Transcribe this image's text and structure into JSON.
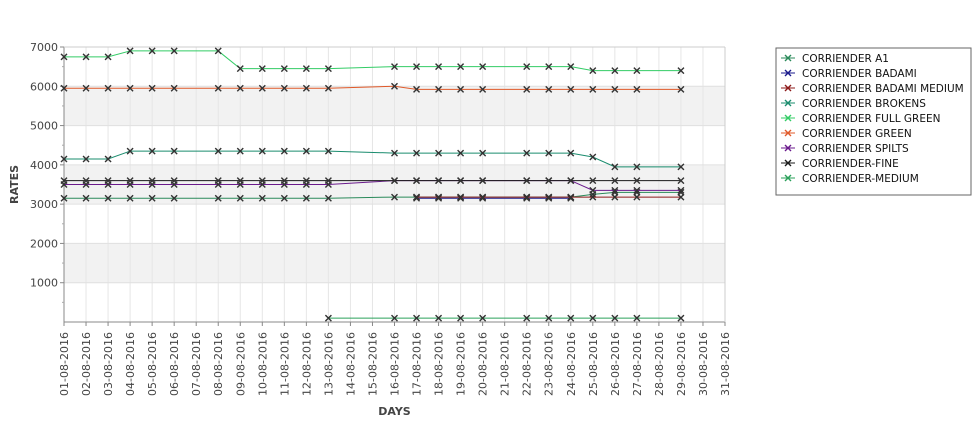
{
  "chart_data": {
    "type": "line",
    "title": "",
    "xlabel": "DAYS",
    "ylabel": "RATES",
    "ylim": [
      0,
      7000
    ],
    "yticks": [
      1000,
      2000,
      3000,
      4000,
      5000,
      6000,
      7000
    ],
    "grid": true,
    "legend_position": "right",
    "categories": [
      "01-08-2016",
      "02-08-2016",
      "03-08-2016",
      "04-08-2016",
      "05-08-2016",
      "06-08-2016",
      "07-08-2016",
      "08-08-2016",
      "09-08-2016",
      "10-08-2016",
      "11-08-2016",
      "12-08-2016",
      "13-08-2016",
      "14-08-2016",
      "15-08-2016",
      "16-08-2016",
      "17-08-2016",
      "18-08-2016",
      "19-08-2016",
      "20-08-2016",
      "21-08-2016",
      "22-08-2016",
      "23-08-2016",
      "24-08-2016",
      "25-08-2016",
      "26-08-2016",
      "27-08-2016",
      "28-08-2016",
      "29-08-2016",
      "30-08-2016",
      "31-08-2016"
    ],
    "series": [
      {
        "name": "CORRIENDER A1",
        "color": "#2a8a5a",
        "marker": "x",
        "values": [
          3150,
          3150,
          3150,
          3150,
          3150,
          3150,
          null,
          3150,
          3150,
          3150,
          3150,
          3150,
          3150,
          null,
          null,
          3180,
          3180,
          3180,
          3180,
          3180,
          null,
          3180,
          3180,
          3180,
          3250,
          3300,
          3300,
          null,
          3300,
          null,
          null
        ]
      },
      {
        "name": "CORRIENDER BADAMI",
        "color": "#1a1a8c",
        "marker": "x",
        "values": [
          null,
          null,
          null,
          null,
          null,
          null,
          null,
          null,
          null,
          null,
          null,
          null,
          null,
          null,
          null,
          null,
          3150,
          3150,
          3150,
          3150,
          null,
          3150,
          3150,
          3150,
          null,
          null,
          null,
          null,
          null,
          null,
          null
        ]
      },
      {
        "name": "CORRIENDER BADAMI MEDIUM",
        "color": "#8c1a1a",
        "marker": "x",
        "values": [
          null,
          null,
          null,
          null,
          null,
          null,
          null,
          null,
          null,
          null,
          null,
          null,
          null,
          null,
          null,
          null,
          3180,
          3180,
          3180,
          3180,
          null,
          3180,
          3180,
          3180,
          3180,
          3180,
          3180,
          null,
          3180,
          null,
          null
        ]
      },
      {
        "name": "CORRIENDER BROKENS",
        "color": "#1a8c6e",
        "marker": "x",
        "values": [
          4150,
          4150,
          4150,
          4350,
          4350,
          4350,
          null,
          4350,
          4350,
          4350,
          4350,
          4350,
          4350,
          null,
          null,
          4300,
          4300,
          4300,
          4300,
          4300,
          null,
          4300,
          4300,
          4300,
          4200,
          3950,
          3950,
          null,
          3950,
          null,
          null
        ]
      },
      {
        "name": "CORRIENDER FULL GREEN",
        "color": "#33cc66",
        "marker": "x",
        "values": [
          6750,
          6750,
          6750,
          6900,
          6900,
          6900,
          null,
          6900,
          6450,
          6450,
          6450,
          6450,
          6450,
          null,
          null,
          6500,
          6500,
          6500,
          6500,
          6500,
          null,
          6500,
          6500,
          6500,
          6400,
          6400,
          6400,
          null,
          6400,
          null,
          null
        ]
      },
      {
        "name": "CORRIENDER GREEN",
        "color": "#e05a2a",
        "marker": "x",
        "values": [
          5950,
          5950,
          5950,
          5950,
          5950,
          5950,
          null,
          5950,
          5950,
          5950,
          5950,
          5950,
          5950,
          null,
          null,
          6000,
          5920,
          5920,
          5920,
          5920,
          null,
          5920,
          5920,
          5920,
          5920,
          5920,
          5920,
          null,
          5920,
          null,
          null
        ]
      },
      {
        "name": "CORRIENDER SPILTS",
        "color": "#6a1a8c",
        "marker": "x",
        "values": [
          3500,
          3500,
          3500,
          3500,
          3500,
          3500,
          null,
          3500,
          3500,
          3500,
          3500,
          3500,
          3500,
          null,
          null,
          3600,
          3600,
          3600,
          3600,
          3600,
          null,
          3600,
          3600,
          3600,
          3350,
          3350,
          3350,
          null,
          3350,
          null,
          null
        ]
      },
      {
        "name": "CORRIENDER-FINE",
        "color": "#1a1a1a",
        "marker": "x",
        "values": [
          3600,
          3600,
          3600,
          3600,
          3600,
          3600,
          null,
          3600,
          3600,
          3600,
          3600,
          3600,
          3600,
          null,
          null,
          3600,
          3600,
          3600,
          3600,
          3600,
          null,
          3600,
          3600,
          3600,
          3600,
          3600,
          3600,
          null,
          3600,
          null,
          null
        ]
      },
      {
        "name": "CORRIENDER-MEDIUM",
        "color": "#2aa05a",
        "marker": "x",
        "values": [
          null,
          null,
          null,
          null,
          null,
          null,
          null,
          null,
          null,
          null,
          null,
          null,
          100,
          null,
          null,
          100,
          100,
          100,
          100,
          100,
          null,
          100,
          100,
          100,
          100,
          100,
          100,
          null,
          100,
          null,
          null
        ]
      }
    ]
  }
}
